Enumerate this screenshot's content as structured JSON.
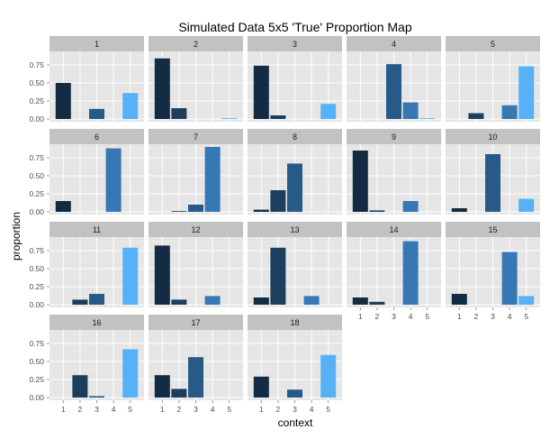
{
  "chart_data": {
    "type": "bar",
    "title": "Simulated Data 5x5 'True' Proportion Map",
    "xlabel": "context",
    "ylabel": "proportion",
    "categories": [
      "1",
      "2",
      "3",
      "4",
      "5"
    ],
    "ylim": [
      0,
      0.9
    ],
    "yticks": [
      "0.00",
      "0.25",
      "0.50",
      "0.75"
    ],
    "facet_columns": 5,
    "grid": true,
    "bar_colors": [
      "#132b43",
      "#1d3f5e",
      "#285a87",
      "#3677b4",
      "#56b1f7"
    ],
    "panels": [
      {
        "label": "1",
        "values": [
          0.5,
          0.0,
          0.14,
          0.0,
          0.36
        ]
      },
      {
        "label": "2",
        "values": [
          0.84,
          0.15,
          0.0,
          0.0,
          0.01
        ]
      },
      {
        "label": "3",
        "values": [
          0.74,
          0.05,
          0.0,
          0.0,
          0.21
        ]
      },
      {
        "label": "4",
        "values": [
          0.0,
          0.0,
          0.76,
          0.23,
          0.01
        ]
      },
      {
        "label": "5",
        "values": [
          0.0,
          0.08,
          0.0,
          0.19,
          0.73
        ]
      },
      {
        "label": "6",
        "values": [
          0.15,
          0.0,
          0.0,
          0.88,
          0.0
        ]
      },
      {
        "label": "7",
        "values": [
          0.0,
          0.01,
          0.1,
          0.9,
          0.0
        ]
      },
      {
        "label": "8",
        "values": [
          0.03,
          0.3,
          0.67,
          0.0,
          0.0
        ]
      },
      {
        "label": "9",
        "values": [
          0.85,
          0.02,
          0.0,
          0.15,
          0.0
        ]
      },
      {
        "label": "10",
        "values": [
          0.05,
          0.0,
          0.8,
          0.0,
          0.18
        ]
      },
      {
        "label": "11",
        "values": [
          0.0,
          0.07,
          0.15,
          0.0,
          0.79
        ]
      },
      {
        "label": "12",
        "values": [
          0.82,
          0.07,
          0.0,
          0.12,
          0.0
        ]
      },
      {
        "label": "13",
        "values": [
          0.1,
          0.79,
          0.0,
          0.12,
          0.0
        ]
      },
      {
        "label": "14",
        "values": [
          0.1,
          0.04,
          0.0,
          0.88,
          0.0
        ]
      },
      {
        "label": "15",
        "values": [
          0.15,
          0.0,
          0.0,
          0.73,
          0.12
        ]
      },
      {
        "label": "16",
        "values": [
          0.0,
          0.31,
          0.02,
          0.0,
          0.67
        ]
      },
      {
        "label": "17",
        "values": [
          0.31,
          0.12,
          0.56,
          0.0,
          0.0
        ]
      },
      {
        "label": "18",
        "values": [
          0.29,
          0.0,
          0.11,
          0.0,
          0.59
        ]
      }
    ]
  }
}
